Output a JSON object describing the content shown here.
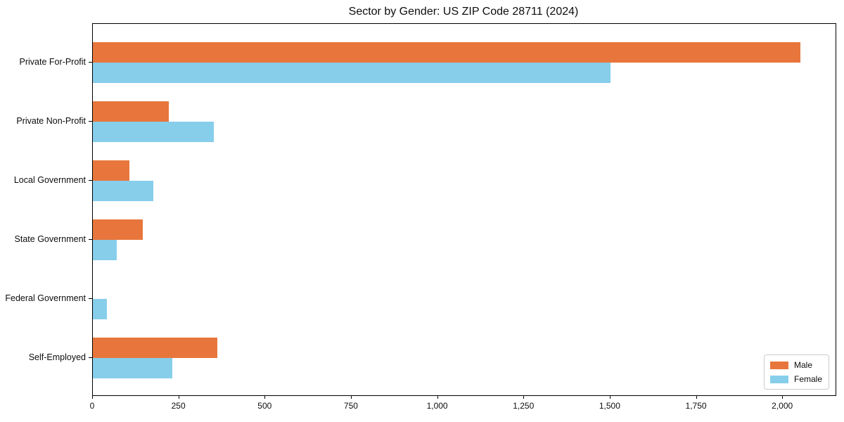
{
  "title": "Sector by Gender: US ZIP Code 28711 (2024)",
  "colors": {
    "male": "#E8763C",
    "female": "#87CEEB",
    "axis": "#000000",
    "legend_border": "#CCCCCC",
    "background": "#FFFFFF",
    "text": "#0D0D0D"
  },
  "chart_data": {
    "type": "bar",
    "orientation": "horizontal",
    "title": "Sector by Gender: US ZIP Code 28711 (2024)",
    "xlabel": "",
    "ylabel": "",
    "grid": false,
    "legend_position": "lower right",
    "categories": [
      "Private For-Profit",
      "Private Non-Profit",
      "Local Government",
      "State Government",
      "Federal Government",
      "Self-Employed"
    ],
    "series": [
      {
        "name": "Male",
        "color": "#E8763C",
        "values": [
          2050,
          220,
          105,
          145,
          0,
          360
        ]
      },
      {
        "name": "Female",
        "color": "#87CEEB",
        "values": [
          1500,
          350,
          175,
          70,
          40,
          230
        ]
      }
    ],
    "xlim": [
      0,
      2152.5
    ],
    "x_ticks": [
      0,
      250,
      500,
      750,
      1000,
      1250,
      1500,
      1750,
      2000
    ],
    "x_tick_labels": [
      "0",
      "250",
      "500",
      "750",
      "1,000",
      "1,250",
      "1,500",
      "1,750",
      "2,000"
    ]
  },
  "legend": {
    "items": [
      {
        "label": "Male"
      },
      {
        "label": "Female"
      }
    ]
  }
}
